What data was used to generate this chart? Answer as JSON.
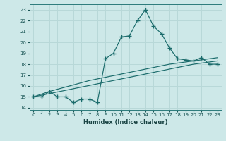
{
  "xlabel": "Humidex (Indice chaleur)",
  "bg_color": "#cde8e8",
  "grid_color": "#b8d8d8",
  "line_color": "#1a6b6b",
  "xlim": [
    -0.5,
    23.5
  ],
  "ylim": [
    13.8,
    23.5
  ],
  "x_ticks": [
    0,
    1,
    2,
    3,
    4,
    5,
    6,
    7,
    8,
    9,
    10,
    11,
    12,
    13,
    14,
    15,
    16,
    17,
    18,
    19,
    20,
    21,
    22,
    23
  ],
  "y_ticks": [
    14,
    15,
    16,
    17,
    18,
    19,
    20,
    21,
    22,
    23
  ],
  "main_y": [
    15.0,
    15.0,
    15.5,
    15.0,
    15.0,
    14.5,
    14.8,
    14.8,
    14.5,
    18.5,
    19.0,
    20.5,
    20.6,
    22.0,
    23.0,
    21.5,
    20.8,
    19.5,
    18.5,
    18.4,
    18.3,
    18.6,
    18.0,
    18.0
  ],
  "line1_y": [
    15.0,
    15.15,
    15.3,
    15.45,
    15.6,
    15.75,
    15.9,
    16.05,
    16.2,
    16.35,
    16.5,
    16.65,
    16.8,
    16.95,
    17.1,
    17.25,
    17.4,
    17.55,
    17.7,
    17.85,
    18.0,
    18.1,
    18.2,
    18.3
  ],
  "line2_y": [
    15.0,
    15.25,
    15.5,
    15.7,
    15.9,
    16.1,
    16.3,
    16.5,
    16.65,
    16.8,
    16.95,
    17.1,
    17.25,
    17.4,
    17.55,
    17.7,
    17.85,
    18.0,
    18.1,
    18.2,
    18.3,
    18.4,
    18.5,
    18.6
  ]
}
